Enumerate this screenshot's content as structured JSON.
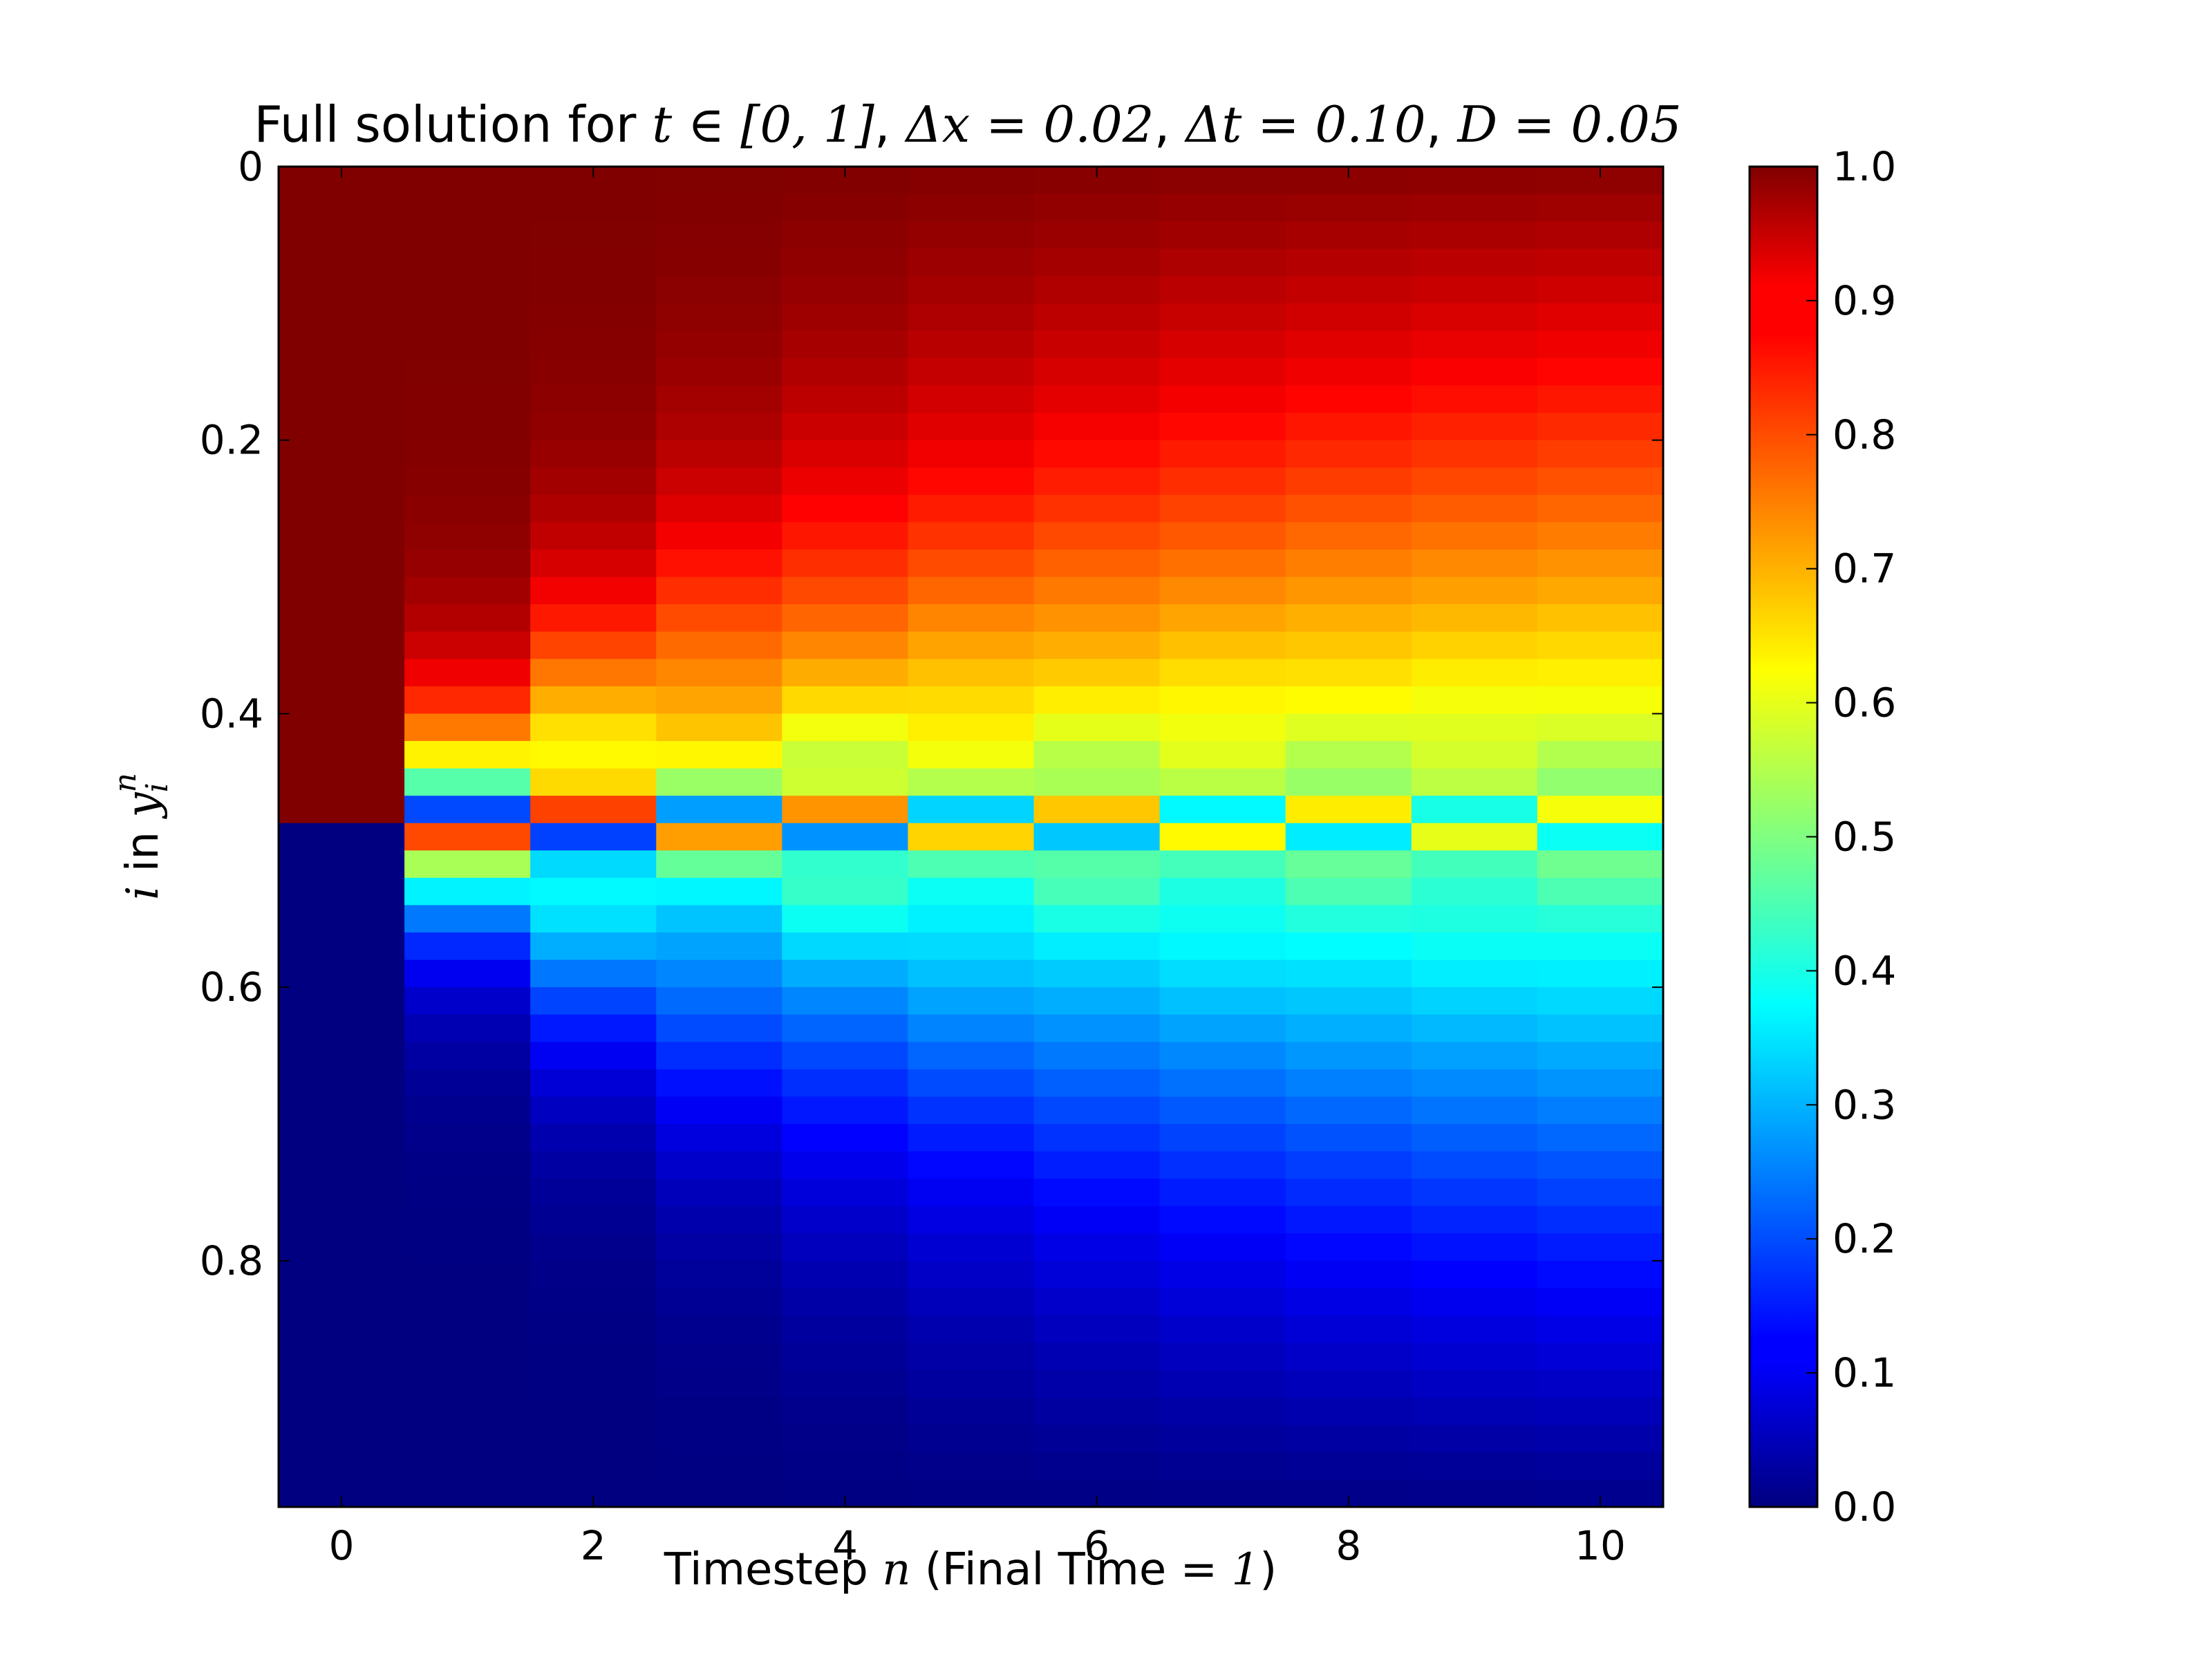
{
  "chart_data": {
    "type": "heatmap",
    "title_parts": {
      "prefix": "Full solution for ",
      "t_range": "t ∈ [0, 1]",
      "dx": "Δx = 0.02",
      "dt": "Δt = 0.10",
      "diff": "D = 0.05",
      "sep": ", "
    },
    "xlabel_parts": {
      "pre": "Timestep ",
      "var": "n",
      "mid": " (Final Time = ",
      "val": "1",
      "post": ")"
    },
    "ylabel_parts": {
      "var_i": "i",
      "mid": " in ",
      "var_y": "y",
      "sub": "i",
      "sup": "n"
    },
    "x_ticks": [
      "0",
      "2",
      "4",
      "6",
      "8",
      "10"
    ],
    "y_ticks": [
      "0",
      "0.2",
      "0.4",
      "0.6",
      "0.8"
    ],
    "colorbar_ticks": [
      "0.0",
      "0.1",
      "0.2",
      "0.3",
      "0.4",
      "0.5",
      "0.6",
      "0.7",
      "0.8",
      "0.9",
      "1.0"
    ],
    "xlim": [
      -0.5,
      10.5
    ],
    "ylim": [
      0,
      0.98
    ],
    "vmin": 0,
    "vmax": 1,
    "colormap": "jet",
    "n_timesteps": 11,
    "n_space": 49,
    "dx": 0.02,
    "D": 0.05,
    "dt": 0.1
  }
}
